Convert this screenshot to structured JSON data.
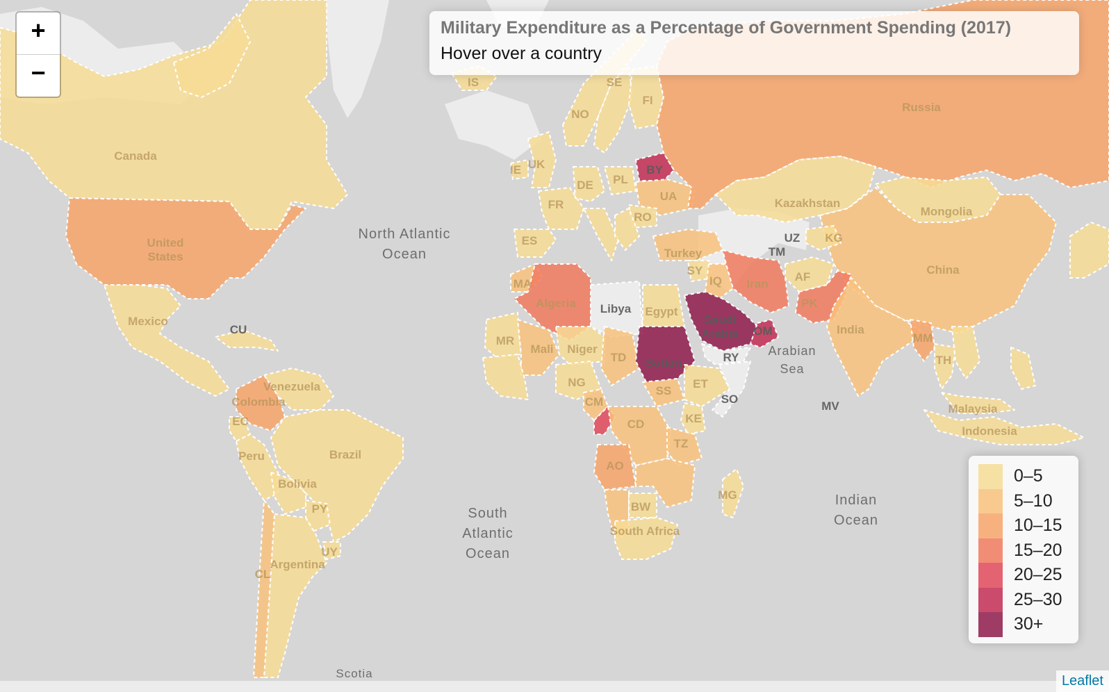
{
  "info": {
    "title": "Military Expenditure as a Percentage of Government Spending (2017)",
    "hint": "Hover over a country"
  },
  "zoom": {
    "in_label": "+",
    "out_label": "−"
  },
  "legend": [
    {
      "label": "0–5",
      "color": "#f7dc95"
    },
    {
      "label": "5–10",
      "color": "#f9c27c"
    },
    {
      "label": "10–15",
      "color": "#f7a46a"
    },
    {
      "label": "15–20",
      "color": "#f17a5e"
    },
    {
      "label": "20–25",
      "color": "#e0495a"
    },
    {
      "label": "25–30",
      "color": "#c22d54"
    },
    {
      "label": "30+",
      "color": "#8e1b4b"
    }
  ],
  "attribution": "Leaflet",
  "ocean_labels": [
    {
      "lines": [
        "North Atlantic",
        "Ocean"
      ]
    },
    {
      "lines": [
        "South",
        "Atlantic",
        "Ocean"
      ]
    },
    {
      "lines": [
        "Indian",
        "Ocean"
      ]
    },
    {
      "lines": [
        "Arabian",
        "Sea"
      ]
    },
    {
      "lines": [
        "Scotia"
      ]
    }
  ],
  "countries": [
    {
      "label": "Canada",
      "bin": 0
    },
    {
      "label": "United States",
      "bin": 2
    },
    {
      "label": "Mexico",
      "bin": 0
    },
    {
      "label": "CU",
      "bin": 0
    },
    {
      "label": "Venezuela",
      "bin": 0
    },
    {
      "label": "Colombia",
      "bin": 2
    },
    {
      "label": "EC",
      "bin": 0
    },
    {
      "label": "Peru",
      "bin": 0
    },
    {
      "label": "Brazil",
      "bin": 0
    },
    {
      "label": "Bolivia",
      "bin": 0
    },
    {
      "label": "PY",
      "bin": 0
    },
    {
      "label": "UY",
      "bin": 0
    },
    {
      "label": "Argentina",
      "bin": 0
    },
    {
      "label": "CL",
      "bin": 1
    },
    {
      "label": "IS",
      "bin": 0
    },
    {
      "label": "NO",
      "bin": 0
    },
    {
      "label": "SE",
      "bin": 0
    },
    {
      "label": "FI",
      "bin": 0
    },
    {
      "label": "UK",
      "bin": 0
    },
    {
      "label": "IE",
      "bin": 0
    },
    {
      "label": "FR",
      "bin": 0
    },
    {
      "label": "ES",
      "bin": 0
    },
    {
      "label": "DE",
      "bin": 0
    },
    {
      "label": "PL",
      "bin": 0
    },
    {
      "label": "BY",
      "bin": 5
    },
    {
      "label": "UA",
      "bin": 1
    },
    {
      "label": "RO",
      "bin": 0
    },
    {
      "label": "Russia",
      "bin": 2
    },
    {
      "label": "Kazakhstan",
      "bin": 0
    },
    {
      "label": "Mongolia",
      "bin": 0
    },
    {
      "label": "China",
      "bin": 1
    },
    {
      "label": "Turkey",
      "bin": 1
    },
    {
      "label": "SY",
      "bin": 0
    },
    {
      "label": "IQ",
      "bin": 1
    },
    {
      "label": "Iran",
      "bin": 3
    },
    {
      "label": "TM",
      "bin": -1
    },
    {
      "label": "UZ",
      "bin": -1
    },
    {
      "label": "KG",
      "bin": 0
    },
    {
      "label": "AF",
      "bin": 0
    },
    {
      "label": "PK",
      "bin": 3
    },
    {
      "label": "India",
      "bin": 1
    },
    {
      "label": "MM",
      "bin": 2
    },
    {
      "label": "TH",
      "bin": 0
    },
    {
      "label": "Malaysia",
      "bin": 0
    },
    {
      "label": "Indonesia",
      "bin": 0
    },
    {
      "label": "Saudi Arabia",
      "bin": 6
    },
    {
      "label": "RY",
      "bin": -1
    },
    {
      "label": "OM",
      "bin": 5
    },
    {
      "label": "MA",
      "bin": 1
    },
    {
      "label": "Algeria",
      "bin": 3
    },
    {
      "label": "Libya",
      "bin": -1
    },
    {
      "label": "Egypt",
      "bin": 0
    },
    {
      "label": "MR",
      "bin": 0
    },
    {
      "label": "Mali",
      "bin": 1
    },
    {
      "label": "Niger",
      "bin": 0
    },
    {
      "label": "TD",
      "bin": 1
    },
    {
      "label": "Sudan",
      "bin": 6
    },
    {
      "label": "SS",
      "bin": 1
    },
    {
      "label": "ET",
      "bin": 0
    },
    {
      "label": "SO",
      "bin": -1
    },
    {
      "label": "NG",
      "bin": 0
    },
    {
      "label": "CM",
      "bin": 1
    },
    {
      "label": "CD",
      "bin": 1
    },
    {
      "label": "KE",
      "bin": 0
    },
    {
      "label": "TZ",
      "bin": 1
    },
    {
      "label": "AO",
      "bin": 2
    },
    {
      "label": "BW",
      "bin": 0
    },
    {
      "label": "South Africa",
      "bin": 0
    },
    {
      "label": "MG",
      "bin": 0
    },
    {
      "label": "MV",
      "bin": -1
    }
  ]
}
